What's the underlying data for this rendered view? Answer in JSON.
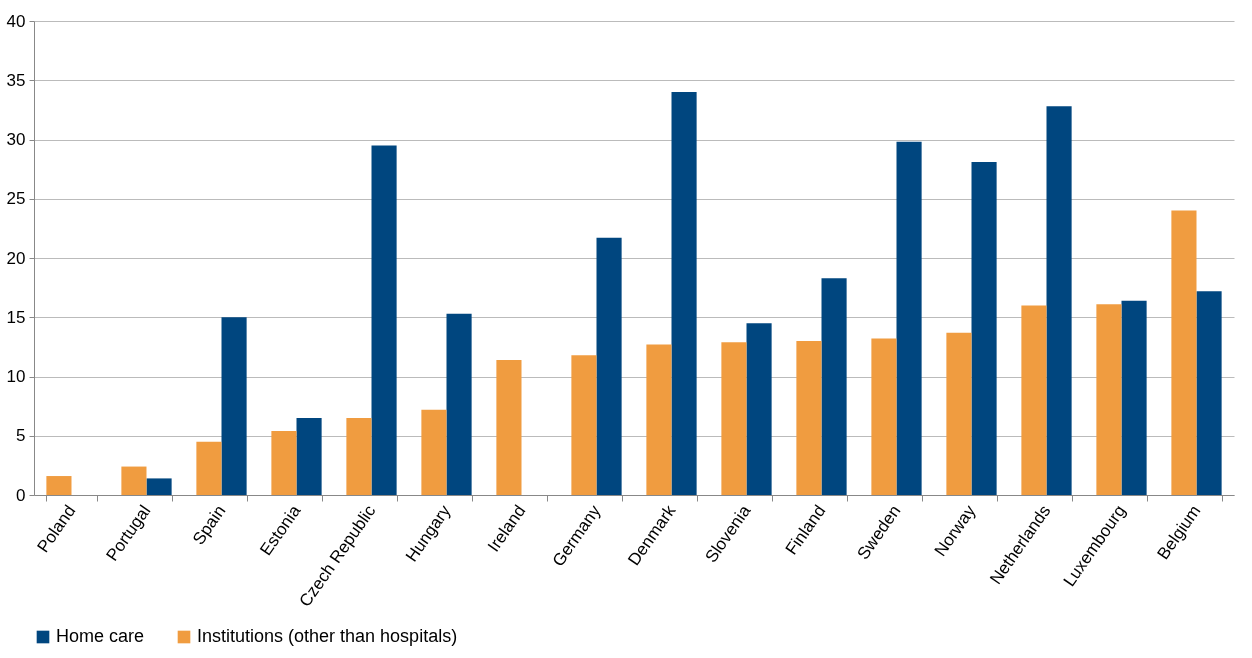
{
  "chart_data": {
    "type": "bar",
    "categories": [
      "Poland",
      "Portugal",
      "Spain",
      "Estonia",
      "Czech Republic",
      "Hungary",
      "Ireland",
      "Germany",
      "Denmark",
      "Slovenia",
      "Finland",
      "Sweden",
      "Norway",
      "Netherlands",
      "Luxembourg",
      "Belgium"
    ],
    "series": [
      {
        "name": "Home care",
        "color": "#00467f",
        "values": [
          null,
          1.4,
          15.0,
          6.5,
          29.5,
          15.3,
          null,
          21.7,
          34.0,
          14.5,
          18.3,
          29.8,
          28.1,
          32.8,
          16.4,
          17.2
        ]
      },
      {
        "name": "Institutions (other than hospitals)",
        "color": "#f09c40",
        "values": [
          1.6,
          2.4,
          4.5,
          5.4,
          6.5,
          7.2,
          11.4,
          11.8,
          12.7,
          12.9,
          13.0,
          13.2,
          13.7,
          16.0,
          16.1,
          24.0
        ]
      }
    ],
    "ylim": [
      0,
      40
    ],
    "yticks": [
      0,
      5,
      10,
      15,
      20,
      25,
      30,
      35,
      40
    ],
    "grid": "y",
    "legend": "bottom"
  }
}
